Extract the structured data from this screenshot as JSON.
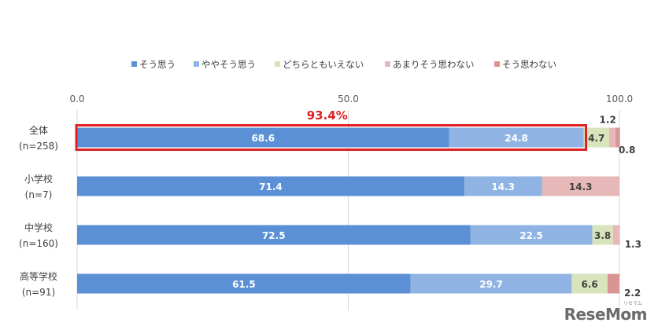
{
  "chart_data": {
    "type": "bar",
    "orientation": "horizontal",
    "stacked": true,
    "xlim": [
      0,
      100
    ],
    "x_ticks": [
      "0.0",
      "50.0",
      "100.0"
    ],
    "grid": "vertical",
    "legend_position": "top",
    "categories": [
      [
        "全体",
        "(n=258)"
      ],
      [
        "小学校",
        "(n=7)"
      ],
      [
        "中学校",
        "(n=160)"
      ],
      [
        "高等学校",
        "(n=91)"
      ]
    ],
    "series": [
      {
        "name": "そう思う",
        "color": "#5b8fd6",
        "values": [
          68.6,
          71.4,
          72.5,
          61.5
        ]
      },
      {
        "name": "ややそう思う",
        "color": "#8fb4e3",
        "values": [
          24.8,
          14.3,
          22.5,
          29.7
        ]
      },
      {
        "name": "どちらともいえない",
        "color": "#d8e4bc",
        "values": [
          4.7,
          0,
          3.8,
          6.6
        ]
      },
      {
        "name": "あまりそう思わない",
        "color": "#e6b9b8",
        "values": [
          1.2,
          14.3,
          1.3,
          0
        ]
      },
      {
        "name": "そう思わない",
        "color": "#d99594",
        "values": [
          0.8,
          0,
          0,
          2.2
        ]
      }
    ],
    "data_labels": [
      [
        "68.6",
        "24.8",
        "4.7",
        "1.2",
        "0.8"
      ],
      [
        "71.4",
        "14.3",
        "",
        "14.3",
        ""
      ],
      [
        "72.5",
        "22.5",
        "3.8",
        "1.3",
        ""
      ],
      [
        "61.5",
        "29.7",
        "6.6",
        "",
        "2.2"
      ]
    ],
    "annotation": {
      "text": "93.4%",
      "color": "#e02020",
      "highlight_category": 0
    }
  },
  "watermark": {
    "text": "ReseMom",
    "sub": "リセマム"
  }
}
